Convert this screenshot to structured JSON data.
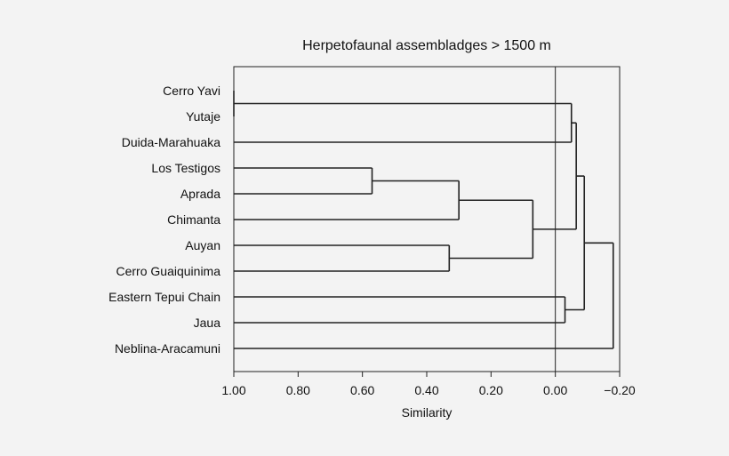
{
  "chart_data": {
    "type": "dendrogram",
    "title": "Herpetofaunal assembladges > 1500 m",
    "xlabel": "Similarity",
    "xlim": [
      1.0,
      -0.2
    ],
    "x_ticks": [
      1.0,
      0.8,
      0.6,
      0.4,
      0.2,
      0.0,
      -0.2
    ],
    "x_tick_labels": [
      "1.00",
      "0.80",
      "0.60",
      "0.40",
      "0.20",
      "0.00",
      "−0.20"
    ],
    "reference_line_x": 0.0,
    "leaves": [
      "Cerro Yavi",
      "Yutaje",
      "Duida-Marahuaka",
      "Los Testigos",
      "Aprada",
      "Chimanta",
      "Auyan",
      "Cerro Guaiquinima",
      "Eastern Tepui Chain",
      "Jaua",
      "Neblina-Aracamuni"
    ],
    "merges": [
      {
        "left": "Cerro Yavi",
        "right": "Yutaje",
        "similarity": 1.0
      },
      {
        "left": "Los Testigos",
        "right": "Aprada",
        "similarity": 0.57
      },
      {
        "left": "Los Testigos+Aprada",
        "right": "Chimanta",
        "similarity": 0.3
      },
      {
        "left": "Auyan",
        "right": "Cerro Guaiquinima",
        "similarity": 0.33
      },
      {
        "left": "Los Testigos+Aprada+Chimanta",
        "right": "Auyan+Cerro Guaiquinima",
        "similarity": 0.07
      },
      {
        "left": "Cerro Yavi+Yutaje",
        "right": "Duida-Marahuaka",
        "similarity": -0.05
      },
      {
        "left": "Cerro Yavi+Yutaje+Duida-Marahuaka",
        "right": "Los Testigos+Aprada+Chimanta+Auyan+Cerro Guaiquinima",
        "similarity": -0.065
      },
      {
        "left": "Eastern Tepui Chain",
        "right": "Jaua",
        "similarity": -0.03
      },
      {
        "left": "Cerro Yavi+...+Cerro Guaiquinima",
        "right": "Eastern Tepui Chain+Jaua",
        "similarity": -0.09
      },
      {
        "left": "Cerro Yavi+...+Jaua",
        "right": "Neblina-Aracamuni",
        "similarity": -0.18
      }
    ]
  }
}
